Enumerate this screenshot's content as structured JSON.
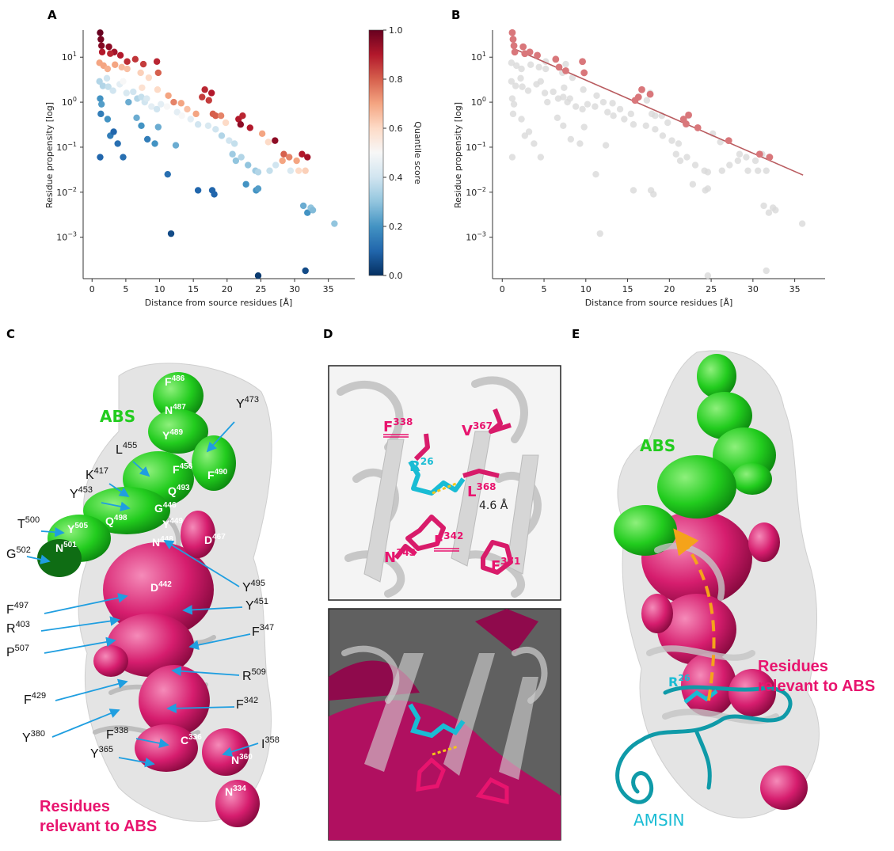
{
  "panels": {
    "A": "A",
    "B": "B",
    "C": "C",
    "D": "D",
    "E": "E"
  },
  "axes": {
    "ylabel": "Residue propensity [log]",
    "xlabel": "Distance from source residues [Å]",
    "cbar_label": "Quantile score",
    "cbar_ticks": [
      "0.0",
      "0.2",
      "0.4",
      "0.6",
      "0.8",
      "1.0"
    ],
    "xticks": [
      "0",
      "5",
      "10",
      "15",
      "20",
      "25",
      "30",
      "35"
    ],
    "ytick_base": "10",
    "ytick_exps": [
      "1",
      "0",
      "−1",
      "−2",
      "−3"
    ]
  },
  "chart_data": [
    {
      "panel": "A",
      "type": "scatter",
      "xlabel": "Distance from source residues [Å]",
      "ylabel": "Residue propensity [log]",
      "yscale": "log",
      "xlim": [
        -0.5,
        37.5
      ],
      "ylim": [
        0.00012,
        40
      ],
      "colorbar": {
        "label": "Quantile score",
        "range": [
          0,
          1
        ],
        "colormap": "RdBu_r"
      },
      "points": [
        [
          1.2,
          35,
          1
        ],
        [
          1.3,
          25,
          0.98
        ],
        [
          1.4,
          18,
          0.96
        ],
        [
          2.5,
          17,
          0.95
        ],
        [
          1.5,
          13,
          0.9
        ],
        [
          3.3,
          13,
          0.92
        ],
        [
          4.2,
          11,
          0.9
        ],
        [
          2.7,
          12,
          0.88
        ],
        [
          5.2,
          8,
          0.87
        ],
        [
          6.4,
          9,
          0.86
        ],
        [
          7.6,
          7,
          0.85
        ],
        [
          9.6,
          8,
          0.88
        ],
        [
          9.8,
          4.5,
          0.8
        ],
        [
          1.1,
          7.5,
          0.7
        ],
        [
          1.7,
          6.5,
          0.7
        ],
        [
          2.3,
          5.5,
          0.68
        ],
        [
          3.4,
          6.8,
          0.7
        ],
        [
          4.4,
          6,
          0.66
        ],
        [
          5.2,
          5.5,
          0.65
        ],
        [
          7.2,
          4.5,
          0.62
        ],
        [
          8.4,
          3.5,
          0.6
        ],
        [
          7.4,
          2.1,
          0.58
        ],
        [
          9.7,
          1.9,
          0.6
        ],
        [
          11.3,
          1.4,
          0.7
        ],
        [
          12.1,
          1.0,
          0.75
        ],
        [
          13.2,
          0.95,
          0.7
        ],
        [
          14.1,
          0.7,
          0.65
        ],
        [
          16.3,
          1.3,
          0.85
        ],
        [
          16.7,
          1.9,
          0.88
        ],
        [
          17.3,
          1.1,
          0.85
        ],
        [
          17.7,
          1.6,
          0.9
        ],
        [
          17.9,
          0.55,
          0.8
        ],
        [
          15.4,
          0.55,
          0.7
        ],
        [
          18.3,
          0.5,
          0.8
        ],
        [
          19.1,
          0.5,
          0.75
        ],
        [
          19.8,
          0.35,
          0.6
        ],
        [
          21.7,
          0.42,
          0.9
        ],
        [
          22.3,
          0.5,
          0.88
        ],
        [
          22.0,
          0.32,
          0.95
        ],
        [
          23.4,
          0.27,
          0.9
        ],
        [
          25.2,
          0.2,
          0.7
        ],
        [
          26.1,
          0.13,
          0.6
        ],
        [
          27.1,
          0.14,
          0.95
        ],
        [
          28.4,
          0.07,
          0.8
        ],
        [
          29.2,
          0.06,
          0.75
        ],
        [
          30.3,
          0.05,
          0.7
        ],
        [
          31.1,
          0.07,
          0.9
        ],
        [
          31.9,
          0.06,
          0.92
        ],
        [
          28.2,
          0.05,
          0.7
        ],
        [
          30.6,
          0.03,
          0.6
        ],
        [
          31.6,
          0.03,
          0.62
        ],
        [
          1.1,
          2.9,
          0.35
        ],
        [
          1.6,
          2.3,
          0.35
        ],
        [
          2.2,
          3.4,
          0.4
        ],
        [
          2.4,
          2.2,
          0.38
        ],
        [
          3.1,
          1.8,
          0.4
        ],
        [
          4.1,
          2.5,
          0.45
        ],
        [
          4.6,
          2.9,
          0.5
        ],
        [
          5.1,
          1.6,
          0.42
        ],
        [
          6.1,
          1.7,
          0.4
        ],
        [
          6.7,
          1.2,
          0.35
        ],
        [
          7.3,
          1.3,
          0.38
        ],
        [
          7.8,
          1.0,
          0.4
        ],
        [
          8.1,
          1.2,
          0.42
        ],
        [
          8.8,
          0.8,
          0.45
        ],
        [
          9.6,
          0.7,
          0.4
        ],
        [
          10.2,
          0.9,
          0.45
        ],
        [
          11.1,
          0.8,
          0.5
        ],
        [
          12.6,
          0.6,
          0.45
        ],
        [
          13.3,
          0.5,
          0.5
        ],
        [
          14.6,
          0.42,
          0.45
        ],
        [
          15.7,
          0.32,
          0.4
        ],
        [
          17.2,
          0.3,
          0.42
        ],
        [
          18.3,
          0.25,
          0.4
        ],
        [
          19.2,
          0.18,
          0.35
        ],
        [
          20.3,
          0.14,
          0.4
        ],
        [
          21.1,
          0.12,
          0.38
        ],
        [
          20.8,
          0.07,
          0.32
        ],
        [
          21.3,
          0.05,
          0.3
        ],
        [
          22.1,
          0.06,
          0.35
        ],
        [
          23.1,
          0.04,
          0.3
        ],
        [
          24.2,
          0.03,
          0.32
        ],
        [
          24.6,
          0.028,
          0.35
        ],
        [
          26.3,
          0.03,
          0.38
        ],
        [
          27.2,
          0.04,
          0.4
        ],
        [
          29.4,
          0.03,
          0.42
        ],
        [
          1.2,
          1.2,
          0.2
        ],
        [
          1.4,
          0.9,
          0.22
        ],
        [
          1.3,
          0.55,
          0.15
        ],
        [
          2.3,
          0.42,
          0.2
        ],
        [
          2.7,
          0.18,
          0.15
        ],
        [
          3.2,
          0.22,
          0.1
        ],
        [
          3.8,
          0.12,
          0.12
        ],
        [
          1.2,
          0.06,
          0.1
        ],
        [
          4.6,
          0.06,
          0.12
        ],
        [
          5.4,
          1.0,
          0.25
        ],
        [
          6.6,
          0.45,
          0.25
        ],
        [
          7.3,
          0.3,
          0.2
        ],
        [
          8.2,
          0.15,
          0.15
        ],
        [
          9.3,
          0.12,
          0.2
        ],
        [
          9.8,
          0.28,
          0.25
        ],
        [
          12.4,
          0.11,
          0.25
        ],
        [
          11.2,
          0.025,
          0.12
        ],
        [
          15.7,
          0.011,
          0.1
        ],
        [
          17.8,
          0.011,
          0.1
        ],
        [
          18.1,
          0.009,
          0.1
        ],
        [
          22.8,
          0.015,
          0.2
        ],
        [
          24.3,
          0.011,
          0.2
        ],
        [
          24.6,
          0.012,
          0.22
        ],
        [
          31.3,
          0.005,
          0.25
        ],
        [
          31.9,
          0.0035,
          0.2
        ],
        [
          32.4,
          0.0045,
          0.3
        ],
        [
          32.7,
          0.004,
          0.28
        ],
        [
          35.9,
          0.002,
          0.3
        ],
        [
          11.7,
          0.0012,
          0.05
        ],
        [
          24.6,
          0.00014,
          0.02
        ],
        [
          31.6,
          0.00018,
          0.05
        ]
      ]
    },
    {
      "panel": "B",
      "type": "scatter",
      "xlabel": "Distance from source residues [Å]",
      "ylabel": "Residue propensity [log]",
      "yscale": "log",
      "xlim": [
        -0.5,
        37.5
      ],
      "ylim": [
        0.00012,
        40
      ],
      "highlight_color": "#d9777b",
      "fit_color": "#b95b5f",
      "fit_line": [
        [
          1.2,
          16
        ],
        [
          36,
          0.024
        ]
      ],
      "highlighted": [
        [
          1.2,
          35
        ],
        [
          1.3,
          25
        ],
        [
          1.4,
          18
        ],
        [
          2.5,
          17
        ],
        [
          1.5,
          13
        ],
        [
          3.3,
          13
        ],
        [
          4.2,
          11
        ],
        [
          2.7,
          12
        ],
        [
          6.4,
          9
        ],
        [
          6.8,
          6
        ],
        [
          7.6,
          5
        ],
        [
          9.6,
          8
        ],
        [
          9.8,
          4.5
        ],
        [
          16.3,
          1.3
        ],
        [
          16.7,
          1.9
        ],
        [
          17.7,
          1.5
        ],
        [
          15.9,
          1.1
        ],
        [
          21.7,
          0.42
        ],
        [
          22.3,
          0.52
        ],
        [
          22.0,
          0.33
        ],
        [
          23.4,
          0.27
        ],
        [
          27.1,
          0.14
        ],
        [
          30.8,
          0.07
        ],
        [
          32.0,
          0.06
        ]
      ]
    }
  ],
  "panelC": {
    "abs_label": "ABS",
    "relevant_label_line1": "Residues",
    "relevant_label_line2": "relevant to ABS",
    "sphere_labels": [
      {
        "res": "F",
        "num": "486"
      },
      {
        "res": "N",
        "num": "487"
      },
      {
        "res": "Y",
        "num": "489"
      },
      {
        "res": "F",
        "num": "456"
      },
      {
        "res": "Q",
        "num": "493"
      },
      {
        "res": "G",
        "num": "446"
      },
      {
        "res": "Y",
        "num": "449"
      },
      {
        "res": "F",
        "num": "490"
      },
      {
        "res": "Q",
        "num": "498"
      },
      {
        "res": "Y",
        "num": "505"
      },
      {
        "res": "N",
        "num": "501"
      },
      {
        "res": "N",
        "num": "448"
      },
      {
        "res": "D",
        "num": "467"
      },
      {
        "res": "D",
        "num": "442"
      },
      {
        "res": "C",
        "num": "336"
      },
      {
        "res": "N",
        "num": "360"
      },
      {
        "res": "N",
        "num": "334"
      }
    ],
    "callouts": [
      {
        "res": "Y",
        "num": "473"
      },
      {
        "res": "L",
        "num": "455"
      },
      {
        "res": "K",
        "num": "417"
      },
      {
        "res": "Y",
        "num": "453"
      },
      {
        "res": "T",
        "num": "500"
      },
      {
        "res": "G",
        "num": "502"
      },
      {
        "res": "Y",
        "num": "495"
      },
      {
        "res": "F",
        "num": "497"
      },
      {
        "res": "R",
        "num": "403"
      },
      {
        "res": "Y",
        "num": "451"
      },
      {
        "res": "P",
        "num": "507"
      },
      {
        "res": "F",
        "num": "347"
      },
      {
        "res": "R",
        "num": "509"
      },
      {
        "res": "F",
        "num": "429"
      },
      {
        "res": "F",
        "num": "342"
      },
      {
        "res": "Y",
        "num": "380"
      },
      {
        "res": "I",
        "num": "358"
      },
      {
        "res": "F",
        "num": "338"
      },
      {
        "res": "Y",
        "num": "365"
      }
    ]
  },
  "panelD": {
    "labels": [
      {
        "res": "F",
        "num": "338"
      },
      {
        "res": "V",
        "num": "367"
      },
      {
        "res": "R",
        "num": "26"
      },
      {
        "res": "L",
        "num": "368"
      },
      {
        "res": "F",
        "num": "342"
      },
      {
        "res": "N",
        "num": "343"
      },
      {
        "res": "F",
        "num": "371"
      }
    ],
    "distance": "4.6 Å"
  },
  "panelE": {
    "abs_label": "ABS",
    "relevant_label_line1": "Residues",
    "relevant_label_line2": "relevant to ABS",
    "r26": {
      "res": "R",
      "num": "26"
    },
    "amsin": "AMSIN"
  },
  "colors": {
    "magenta": "#e8146e",
    "green": "#22cc1e",
    "cyan": "#19bcd4",
    "callout_arrow": "#1f9ee0",
    "teal": "#0f9aa8",
    "orange": "#f5a31a"
  }
}
